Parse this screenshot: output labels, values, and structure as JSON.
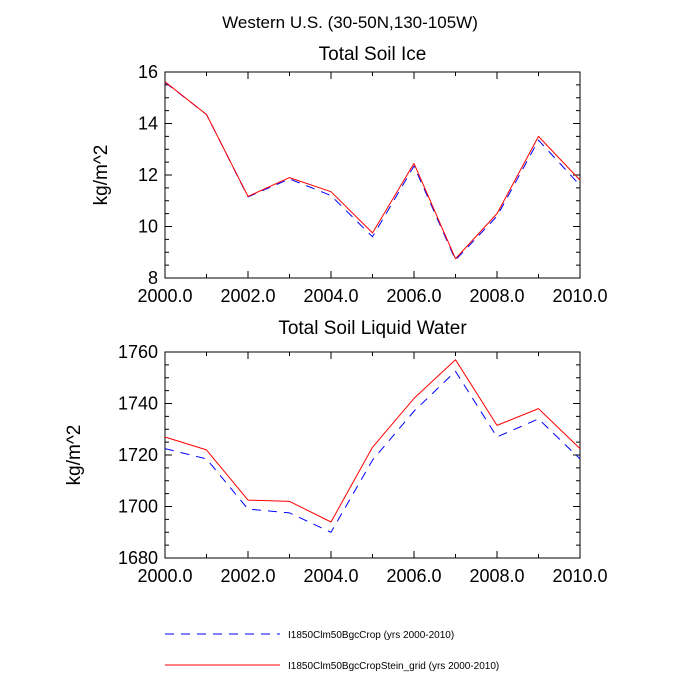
{
  "figure": {
    "title": "Western U.S. (30-50N,130-105W)"
  },
  "colors": {
    "series_a": "#0000ff",
    "series_b": "#ff0000",
    "axes": "#000000"
  },
  "legend": {
    "placement": "bottom",
    "entries": [
      {
        "label": "I1850Clm50BgcCrop (yrs 2000-2010)",
        "color": "#0000ff",
        "dash": "dashed"
      },
      {
        "label": "I1850Clm50BgcCropStein_grid (yrs 2000-2010)",
        "color": "#ff0000",
        "dash": "solid"
      }
    ]
  },
  "chart_data": [
    {
      "type": "line",
      "title": "Total Soil Ice",
      "xlabel": "",
      "ylabel": "kg/m^2",
      "xlim": [
        2000,
        2010
      ],
      "ylim": [
        8,
        16
      ],
      "xticks": [
        2000,
        2002,
        2004,
        2006,
        2008,
        2010
      ],
      "xtick_labels": [
        "2000.0",
        "2002.0",
        "2004.0",
        "2006.0",
        "2008.0",
        "2010.0"
      ],
      "yticks": [
        8,
        10,
        12,
        14,
        16
      ],
      "ytick_labels": [
        "8",
        "10",
        "12",
        "14",
        "16"
      ],
      "grid": false,
      "x": [
        2000,
        2001,
        2002,
        2003,
        2004,
        2005,
        2006,
        2007,
        2008,
        2009,
        2010
      ],
      "series": [
        {
          "name": "I1850Clm50BgcCrop (yrs 2000-2010)",
          "color": "#0000ff",
          "dash": "dashed",
          "values": [
            15.6,
            14.35,
            11.15,
            11.85,
            11.2,
            9.6,
            12.35,
            8.7,
            10.4,
            13.35,
            11.6
          ]
        },
        {
          "name": "I1850Clm50BgcCropStein_grid (yrs 2000-2010)",
          "color": "#ff0000",
          "dash": "solid",
          "values": [
            15.62,
            14.35,
            11.17,
            11.9,
            11.35,
            9.75,
            12.45,
            8.75,
            10.5,
            13.5,
            11.8
          ]
        }
      ]
    },
    {
      "type": "line",
      "title": "Total Soil Liquid Water",
      "xlabel": "",
      "ylabel": "kg/m^2",
      "xlim": [
        2000,
        2010
      ],
      "ylim": [
        1680,
        1760
      ],
      "xticks": [
        2000,
        2002,
        2004,
        2006,
        2008,
        2010
      ],
      "xtick_labels": [
        "2000.0",
        "2002.0",
        "2004.0",
        "2006.0",
        "2008.0",
        "2010.0"
      ],
      "yticks": [
        1680,
        1700,
        1720,
        1740,
        1760
      ],
      "ytick_labels": [
        "1680",
        "1700",
        "1720",
        "1740",
        "1760"
      ],
      "grid": false,
      "x": [
        2000,
        2001,
        2002,
        2003,
        2004,
        2005,
        2006,
        2007,
        2008,
        2009,
        2010
      ],
      "series": [
        {
          "name": "I1850Clm50BgcCrop (yrs 2000-2010)",
          "color": "#0000ff",
          "dash": "dashed",
          "values": [
            1722.5,
            1718.5,
            1699,
            1697.5,
            1690,
            1718,
            1737,
            1752.5,
            1727,
            1734,
            1718.5
          ]
        },
        {
          "name": "I1850Clm50BgcCropStein_grid (yrs 2000-2010)",
          "color": "#ff0000",
          "dash": "solid",
          "values": [
            1727,
            1722,
            1702.5,
            1702,
            1694,
            1723,
            1742,
            1757,
            1731.5,
            1738,
            1722.5
          ]
        }
      ]
    }
  ]
}
